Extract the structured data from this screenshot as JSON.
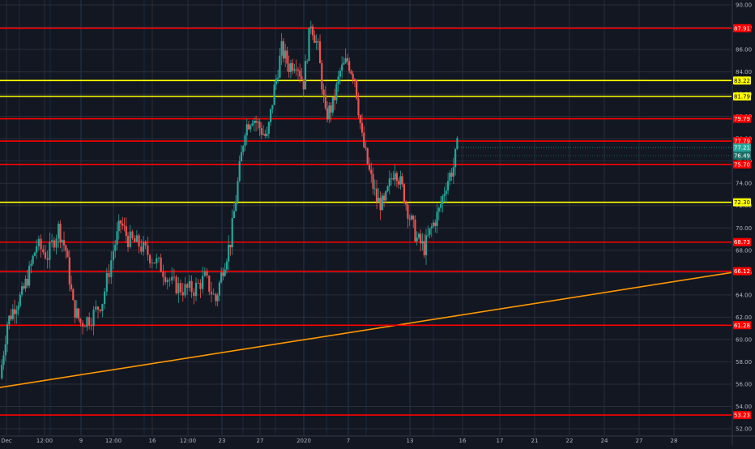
{
  "colors": {
    "background": "#131722",
    "grid": "#2a2e39",
    "axis_text": "#b2b5be",
    "up_candle": "#26a69a",
    "down_candle": "#ef5350",
    "support_red": "#ff0000",
    "support_yellow": "#ffff00",
    "trendline": "#ff9800"
  },
  "chart_data": {
    "type": "line",
    "subtype": "candlestick",
    "title": "",
    "xlabel": "",
    "ylabel": "",
    "ylim": [
      51.2,
      90.3
    ],
    "x_ticks": [
      "Dec",
      "12:00",
      "9",
      "12:00",
      "16",
      "12:00",
      "23",
      "27",
      "2020",
      "7",
      "13",
      "16",
      "17",
      "21",
      "22",
      "24",
      "27",
      "28"
    ],
    "y_ticks": [
      52.0,
      54.0,
      56.0,
      58.0,
      60.0,
      62.0,
      64.0,
      66.0,
      68.0,
      70.0,
      72.0,
      74.0,
      76.0,
      78.0,
      80.0,
      82.0,
      84.0,
      86.0,
      88.0,
      90.0
    ],
    "x_range": [
      0,
      100
    ],
    "series": [
      {
        "kind": "price",
        "points": [
          [
            0.0,
            56.5
          ],
          [
            1.0,
            61.5
          ],
          [
            2.0,
            63.0
          ],
          [
            3.0,
            64.0
          ],
          [
            4.0,
            66.0
          ],
          [
            5.0,
            68.5
          ],
          [
            6.5,
            67.5
          ],
          [
            8.0,
            70.0
          ],
          [
            9.0,
            68.0
          ],
          [
            10.0,
            63.0
          ],
          [
            11.0,
            61.5
          ],
          [
            12.5,
            62.0
          ],
          [
            14.0,
            63.5
          ],
          [
            15.5,
            68.0
          ],
          [
            16.5,
            70.5
          ],
          [
            17.5,
            69.0
          ],
          [
            19.0,
            68.5
          ],
          [
            20.5,
            67.5
          ],
          [
            22.0,
            66.5
          ],
          [
            23.5,
            65.0
          ],
          [
            25.0,
            64.5
          ],
          [
            26.5,
            64.5
          ],
          [
            28.0,
            65.5
          ],
          [
            29.5,
            63.5
          ],
          [
            30.5,
            66.5
          ],
          [
            31.5,
            68.8
          ],
          [
            32.5,
            74.0
          ],
          [
            33.5,
            79.0
          ],
          [
            34.5,
            80.0
          ],
          [
            35.5,
            79.0
          ],
          [
            36.5,
            78.0
          ],
          [
            37.5,
            82.5
          ],
          [
            38.5,
            86.0
          ],
          [
            39.5,
            84.5
          ],
          [
            40.5,
            85.0
          ],
          [
            41.5,
            83.0
          ],
          [
            42.5,
            88.5
          ],
          [
            43.5,
            86.0
          ],
          [
            44.5,
            80.0
          ],
          [
            45.5,
            81.0
          ],
          [
            46.5,
            84.0
          ],
          [
            47.5,
            85.0
          ],
          [
            48.5,
            83.5
          ],
          [
            49.5,
            78.0
          ],
          [
            50.5,
            75.0
          ],
          [
            51.5,
            72.5
          ],
          [
            52.5,
            72.0
          ],
          [
            53.5,
            74.5
          ],
          [
            54.0,
            75.5
          ],
          [
            55.0,
            73.5
          ],
          [
            56.0,
            71.0
          ],
          [
            57.0,
            69.0
          ],
          [
            58.0,
            68.2
          ],
          [
            59.0,
            70.0
          ],
          [
            60.0,
            71.5
          ],
          [
            61.0,
            74.0
          ],
          [
            62.0,
            75.5
          ],
          [
            62.5,
            77.3
          ]
        ]
      }
    ],
    "horizontal_levels": [
      {
        "label": "87.91",
        "value": 87.91,
        "color": "red"
      },
      {
        "label": "83.22",
        "value": 83.22,
        "color": "yellow"
      },
      {
        "label": "81.79",
        "value": 81.79,
        "color": "yellow"
      },
      {
        "label": "79.79",
        "value": 79.79,
        "color": "red"
      },
      {
        "label": "77.79",
        "value": 77.79,
        "color": "red"
      },
      {
        "label": "75.70",
        "value": 75.7,
        "color": "red"
      },
      {
        "label": "72.30",
        "value": 72.3,
        "color": "yellow"
      },
      {
        "label": "68.73",
        "value": 68.73,
        "color": "red"
      },
      {
        "label": "66.12",
        "value": 66.12,
        "color": "red"
      },
      {
        "label": "61.28",
        "value": 61.28,
        "color": "red"
      },
      {
        "label": "53.23",
        "value": 53.23,
        "color": "red"
      }
    ],
    "price_tags": [
      {
        "label": "77.21",
        "value": 77.21,
        "color": "teal"
      },
      {
        "label": "76.49",
        "value": 76.49,
        "color": "darkteal"
      }
    ],
    "trendline": {
      "from": [
        0,
        55.7
      ],
      "to": [
        100,
        66.0
      ]
    },
    "grid": true
  }
}
